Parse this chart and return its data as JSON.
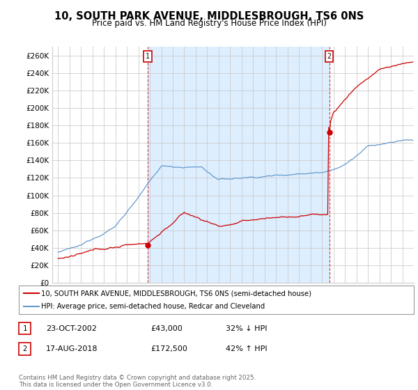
{
  "title": "10, SOUTH PARK AVENUE, MIDDLESBROUGH, TS6 0NS",
  "subtitle": "Price paid vs. HM Land Registry's House Price Index (HPI)",
  "legend_line1": "10, SOUTH PARK AVENUE, MIDDLESBROUGH, TS6 0NS (semi-detached house)",
  "legend_line2": "HPI: Average price, semi-detached house, Redcar and Cleveland",
  "annotation1_date": "23-OCT-2002",
  "annotation1_price": "£43,000",
  "annotation1_hpi": "32% ↓ HPI",
  "annotation2_date": "17-AUG-2018",
  "annotation2_price": "£172,500",
  "annotation2_hpi": "42% ↑ HPI",
  "footer": "Contains HM Land Registry data © Crown copyright and database right 2025.\nThis data is licensed under the Open Government Licence v3.0.",
  "sale_color": "#cc0000",
  "hpi_color": "#6699cc",
  "shade_color": "#ddeeff",
  "background_color": "#ffffff",
  "grid_color": "#cccccc",
  "ylim": [
    0,
    270000
  ],
  "ytick_step": 20000,
  "sale1_x": 2002.81,
  "sale1_y": 43000,
  "sale2_x": 2018.63,
  "sale2_y": 172500,
  "xmin": 1994.5,
  "xmax": 2026.0
}
